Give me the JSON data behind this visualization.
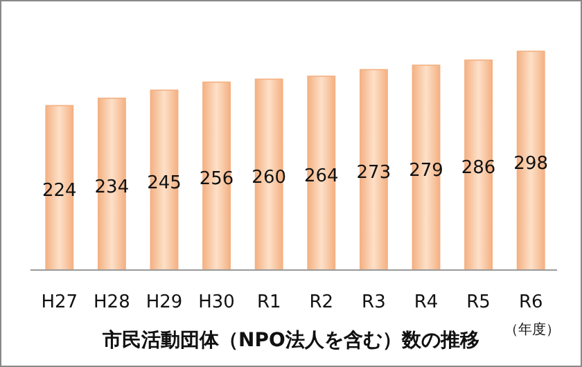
{
  "chart_data": {
    "type": "bar",
    "title": "市民活動団体（NPO法人を含む）数の推移",
    "xlabel": "（年度）",
    "categories": [
      "H27",
      "H28",
      "H29",
      "H30",
      "R1",
      "R2",
      "R3",
      "R4",
      "R5",
      "R6"
    ],
    "values": [
      224,
      234,
      245,
      256,
      260,
      264,
      273,
      279,
      286,
      298
    ],
    "color": "#f4b183",
    "data_labels": true
  }
}
